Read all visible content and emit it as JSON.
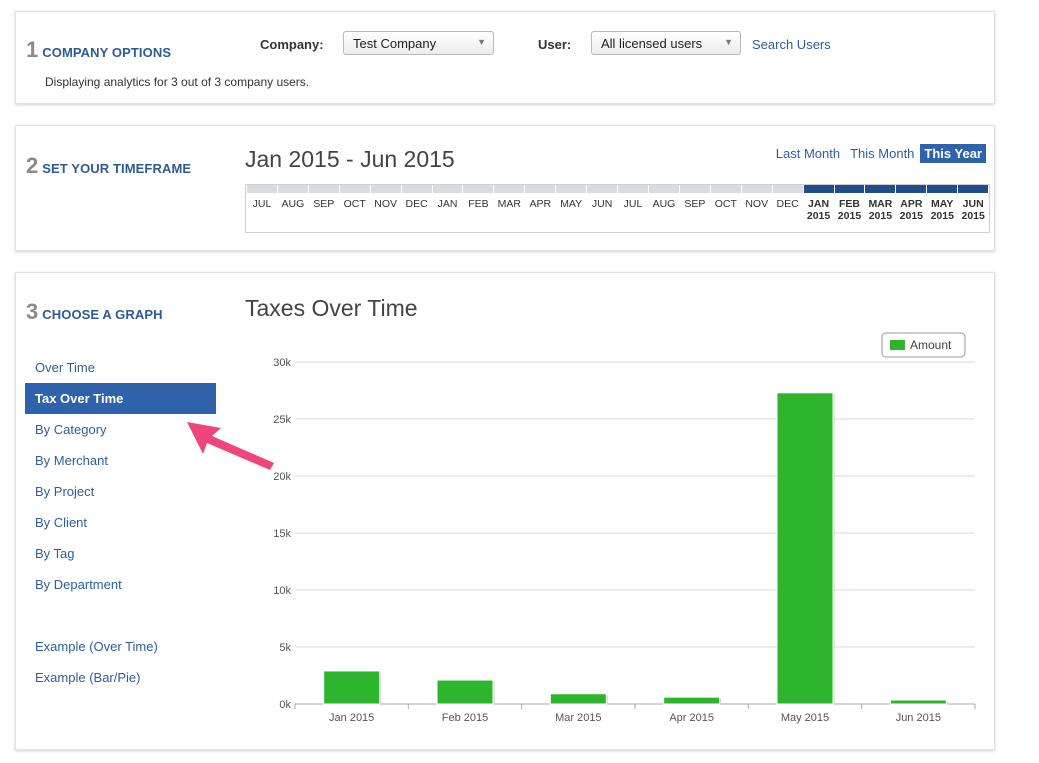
{
  "company_options": {
    "step_number": "1",
    "title": "COMPANY OPTIONS",
    "company_label": "Company:",
    "company_value": "Test Company",
    "user_label": "User:",
    "user_value": "All licensed users",
    "search_users_link": "Search Users",
    "description": "Displaying analytics for 3 out of 3 company users."
  },
  "timeframe": {
    "step_number": "2",
    "title": "SET YOUR TIMEFRAME",
    "range_title": "Jan 2015 - Jun 2015",
    "links": [
      {
        "label": "Last Month",
        "active": false
      },
      {
        "label": "This Month",
        "active": false
      },
      {
        "label": "This Year",
        "active": true
      }
    ],
    "months": [
      {
        "label": "JUL",
        "year": "",
        "selected": false
      },
      {
        "label": "AUG",
        "year": "",
        "selected": false
      },
      {
        "label": "SEP",
        "year": "",
        "selected": false
      },
      {
        "label": "OCT",
        "year": "",
        "selected": false
      },
      {
        "label": "NOV",
        "year": "",
        "selected": false
      },
      {
        "label": "DEC",
        "year": "",
        "selected": false
      },
      {
        "label": "JAN",
        "year": "",
        "selected": false
      },
      {
        "label": "FEB",
        "year": "",
        "selected": false
      },
      {
        "label": "MAR",
        "year": "",
        "selected": false
      },
      {
        "label": "APR",
        "year": "",
        "selected": false
      },
      {
        "label": "MAY",
        "year": "",
        "selected": false
      },
      {
        "label": "JUN",
        "year": "",
        "selected": false
      },
      {
        "label": "JUL",
        "year": "",
        "selected": false
      },
      {
        "label": "AUG",
        "year": "",
        "selected": false
      },
      {
        "label": "SEP",
        "year": "",
        "selected": false
      },
      {
        "label": "OCT",
        "year": "",
        "selected": false
      },
      {
        "label": "NOV",
        "year": "",
        "selected": false
      },
      {
        "label": "DEC",
        "year": "",
        "selected": false
      },
      {
        "label": "JAN",
        "year": "2015",
        "selected": true
      },
      {
        "label": "FEB",
        "year": "2015",
        "selected": true
      },
      {
        "label": "MAR",
        "year": "2015",
        "selected": true
      },
      {
        "label": "APR",
        "year": "2015",
        "selected": true
      },
      {
        "label": "MAY",
        "year": "2015",
        "selected": true
      },
      {
        "label": "JUN",
        "year": "2015",
        "selected": true
      }
    ]
  },
  "graph": {
    "step_number": "3",
    "title": "CHOOSE A GRAPH",
    "chart_title": "Taxes Over Time",
    "menu": [
      {
        "label": "Over Time",
        "active": false
      },
      {
        "label": "Tax Over Time",
        "active": true
      },
      {
        "label": "By Category",
        "active": false
      },
      {
        "label": "By Merchant",
        "active": false
      },
      {
        "label": "By Project",
        "active": false
      },
      {
        "label": "By Client",
        "active": false
      },
      {
        "label": "By Tag",
        "active": false
      },
      {
        "label": "By Department",
        "active": false
      }
    ],
    "examples": [
      {
        "label": "Example (Over Time)"
      },
      {
        "label": "Example (Bar/Pie)"
      }
    ],
    "pointer_color": "#f0457a"
  },
  "chart_data": {
    "type": "bar",
    "title": "Taxes Over Time",
    "xlabel": "",
    "ylabel": "",
    "categories": [
      "Jan 2015",
      "Feb 2015",
      "Mar 2015",
      "Apr 2015",
      "May 2015",
      "Jun 2015"
    ],
    "series": [
      {
        "name": "Amount",
        "color": "#2db52d",
        "values": [
          2900,
          2100,
          900,
          600,
          27300,
          350
        ]
      }
    ],
    "ylim": [
      0,
      30000
    ],
    "yticks": [
      0,
      5000,
      10000,
      15000,
      20000,
      25000,
      30000
    ],
    "ytick_labels": [
      "0k",
      "5k",
      "10k",
      "15k",
      "20k",
      "25k",
      "30k"
    ],
    "grid": true,
    "legend_position": "top-right"
  }
}
